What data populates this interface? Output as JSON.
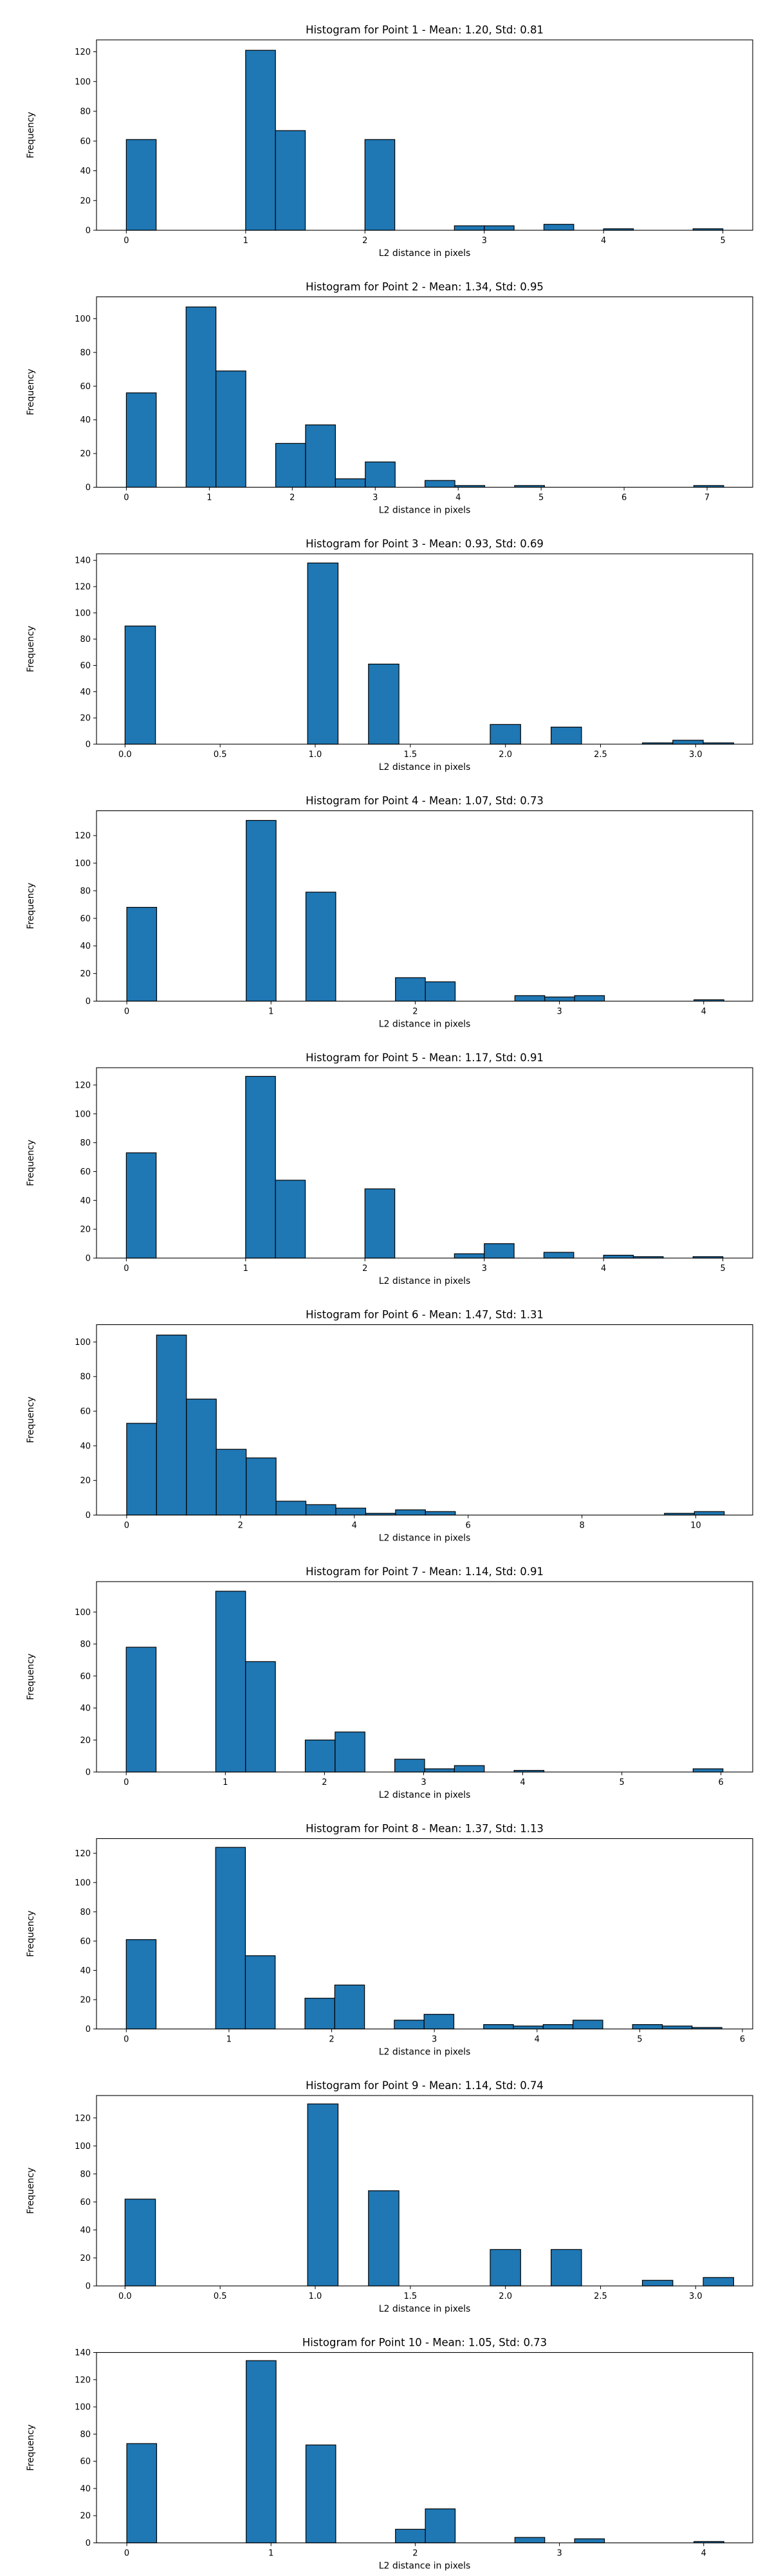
{
  "figure": {
    "bar_color": "#1f77b4",
    "edge_color": "#000000",
    "background": "#ffffff"
  },
  "chart_data": [
    {
      "type": "bar",
      "title": "Histogram for Point 1 - Mean: 1.20, Std: 0.81",
      "xlabel": "L2 distance in pixels",
      "ylabel": "Frequency",
      "xlim": [
        -0.25,
        5.25
      ],
      "ylim": [
        0,
        128
      ],
      "xticks": [
        0,
        1,
        2,
        3,
        4,
        5
      ],
      "xtick_labels": [
        "0",
        "1",
        "2",
        "3",
        "4",
        "5"
      ],
      "yticks": [
        0,
        20,
        40,
        60,
        80,
        100,
        120
      ],
      "bins": [
        {
          "x0": 0.0,
          "x1": 0.25,
          "value": 61
        },
        {
          "x0": 1.0,
          "x1": 1.25,
          "value": 121
        },
        {
          "x0": 1.25,
          "x1": 1.5,
          "value": 67
        },
        {
          "x0": 2.0,
          "x1": 2.25,
          "value": 61
        },
        {
          "x0": 2.75,
          "x1": 3.0,
          "value": 3
        },
        {
          "x0": 3.0,
          "x1": 3.25,
          "value": 3
        },
        {
          "x0": 3.5,
          "x1": 3.75,
          "value": 4
        },
        {
          "x0": 4.0,
          "x1": 4.25,
          "value": 1
        },
        {
          "x0": 4.75,
          "x1": 5.0,
          "value": 1
        }
      ]
    },
    {
      "type": "bar",
      "title": "Histogram for Point 2 - Mean: 1.34, Std: 0.95",
      "xlabel": "L2 distance in pixels",
      "ylabel": "Frequency",
      "xlim": [
        -0.36,
        7.55
      ],
      "ylim": [
        0,
        113
      ],
      "xticks": [
        0,
        1,
        2,
        3,
        4,
        5,
        6,
        7
      ],
      "xtick_labels": [
        "0",
        "1",
        "2",
        "3",
        "4",
        "5",
        "6",
        "7"
      ],
      "yticks": [
        0,
        20,
        40,
        60,
        80,
        100
      ],
      "bins": [
        {
          "x0": 0.0,
          "x1": 0.36,
          "value": 56
        },
        {
          "x0": 0.72,
          "x1": 1.08,
          "value": 107
        },
        {
          "x0": 1.08,
          "x1": 1.44,
          "value": 69
        },
        {
          "x0": 1.8,
          "x1": 2.16,
          "value": 26
        },
        {
          "x0": 2.16,
          "x1": 2.52,
          "value": 37
        },
        {
          "x0": 2.52,
          "x1": 2.88,
          "value": 5
        },
        {
          "x0": 2.88,
          "x1": 3.24,
          "value": 15
        },
        {
          "x0": 3.6,
          "x1": 3.96,
          "value": 4
        },
        {
          "x0": 3.96,
          "x1": 4.32,
          "value": 1
        },
        {
          "x0": 4.68,
          "x1": 5.04,
          "value": 1
        },
        {
          "x0": 6.84,
          "x1": 7.2,
          "value": 1
        }
      ]
    },
    {
      "type": "bar",
      "title": "Histogram for Point 3 - Mean: 0.93, Std: 0.69",
      "xlabel": "L2 distance in pixels",
      "ylabel": "Frequency",
      "xlim": [
        -0.15,
        3.3
      ],
      "ylim": [
        0,
        145
      ],
      "xticks": [
        0,
        0.5,
        1,
        1.5,
        2,
        2.5,
        3
      ],
      "xtick_labels": [
        "0.0",
        "0.5",
        "1.0",
        "1.5",
        "2.0",
        "2.5",
        "3.0"
      ],
      "yticks": [
        0,
        20,
        40,
        60,
        80,
        100,
        120,
        140
      ],
      "bins": [
        {
          "x0": 0.0,
          "x1": 0.16,
          "value": 90
        },
        {
          "x0": 0.96,
          "x1": 1.12,
          "value": 138
        },
        {
          "x0": 1.28,
          "x1": 1.44,
          "value": 61
        },
        {
          "x0": 1.92,
          "x1": 2.08,
          "value": 15
        },
        {
          "x0": 2.24,
          "x1": 2.4,
          "value": 13
        },
        {
          "x0": 2.72,
          "x1": 2.88,
          "value": 1
        },
        {
          "x0": 2.88,
          "x1": 3.04,
          "value": 3
        },
        {
          "x0": 3.04,
          "x1": 3.2,
          "value": 1
        }
      ]
    },
    {
      "type": "bar",
      "title": "Histogram for Point 4 - Mean: 1.07, Std: 0.73",
      "xlabel": "L2 distance in pixels",
      "ylabel": "Frequency",
      "xlim": [
        -0.21,
        4.34
      ],
      "ylim": [
        0,
        138
      ],
      "xticks": [
        0,
        1,
        2,
        3,
        4
      ],
      "xtick_labels": [
        "0",
        "1",
        "2",
        "3",
        "4"
      ],
      "yticks": [
        0,
        20,
        40,
        60,
        80,
        100,
        120
      ],
      "bins": [
        {
          "x0": 0.0,
          "x1": 0.207,
          "value": 68
        },
        {
          "x0": 0.828,
          "x1": 1.035,
          "value": 131
        },
        {
          "x0": 1.242,
          "x1": 1.449,
          "value": 79
        },
        {
          "x0": 1.863,
          "x1": 2.07,
          "value": 17
        },
        {
          "x0": 2.07,
          "x1": 2.277,
          "value": 14
        },
        {
          "x0": 2.691,
          "x1": 2.898,
          "value": 4
        },
        {
          "x0": 2.898,
          "x1": 3.105,
          "value": 3
        },
        {
          "x0": 3.105,
          "x1": 3.312,
          "value": 4
        },
        {
          "x0": 3.933,
          "x1": 4.14,
          "value": 1
        }
      ]
    },
    {
      "type": "bar",
      "title": "Histogram for Point 5 - Mean: 1.17, Std: 0.91",
      "xlabel": "L2 distance in pixels",
      "ylabel": "Frequency",
      "xlim": [
        -0.25,
        5.25
      ],
      "ylim": [
        0,
        132
      ],
      "xticks": [
        0,
        1,
        2,
        3,
        4,
        5
      ],
      "xtick_labels": [
        "0",
        "1",
        "2",
        "3",
        "4",
        "5"
      ],
      "yticks": [
        0,
        20,
        40,
        60,
        80,
        100,
        120
      ],
      "bins": [
        {
          "x0": 0.0,
          "x1": 0.25,
          "value": 73
        },
        {
          "x0": 1.0,
          "x1": 1.25,
          "value": 126
        },
        {
          "x0": 1.25,
          "x1": 1.5,
          "value": 54
        },
        {
          "x0": 2.0,
          "x1": 2.25,
          "value": 48
        },
        {
          "x0": 2.75,
          "x1": 3.0,
          "value": 3
        },
        {
          "x0": 3.0,
          "x1": 3.25,
          "value": 10
        },
        {
          "x0": 3.5,
          "x1": 3.75,
          "value": 4
        },
        {
          "x0": 4.0,
          "x1": 4.25,
          "value": 2
        },
        {
          "x0": 4.25,
          "x1": 4.5,
          "value": 1
        },
        {
          "x0": 4.75,
          "x1": 5.0,
          "value": 1
        }
      ]
    },
    {
      "type": "bar",
      "title": "Histogram for Point 6 - Mean: 1.47, Std: 1.31",
      "xlabel": "L2 distance in pixels",
      "ylabel": "Frequency",
      "xlim": [
        -0.53,
        11.0
      ],
      "ylim": [
        0,
        110
      ],
      "xticks": [
        0,
        2,
        4,
        6,
        8,
        10
      ],
      "xtick_labels": [
        "0",
        "2",
        "4",
        "6",
        "8",
        "10"
      ],
      "yticks": [
        0,
        20,
        40,
        60,
        80,
        100
      ],
      "bins": [
        {
          "x0": 0.0,
          "x1": 0.525,
          "value": 53
        },
        {
          "x0": 0.525,
          "x1": 1.05,
          "value": 104
        },
        {
          "x0": 1.05,
          "x1": 1.575,
          "value": 67
        },
        {
          "x0": 1.575,
          "x1": 2.1,
          "value": 38
        },
        {
          "x0": 2.1,
          "x1": 2.625,
          "value": 33
        },
        {
          "x0": 2.625,
          "x1": 3.15,
          "value": 8
        },
        {
          "x0": 3.15,
          "x1": 3.675,
          "value": 6
        },
        {
          "x0": 3.675,
          "x1": 4.2,
          "value": 4
        },
        {
          "x0": 4.2,
          "x1": 4.725,
          "value": 1
        },
        {
          "x0": 4.725,
          "x1": 5.25,
          "value": 3
        },
        {
          "x0": 5.25,
          "x1": 5.775,
          "value": 2
        },
        {
          "x0": 9.45,
          "x1": 9.975,
          "value": 1
        },
        {
          "x0": 9.975,
          "x1": 10.5,
          "value": 2
        }
      ]
    },
    {
      "type": "bar",
      "title": "Histogram for Point 7 - Mean: 1.14, Std: 0.91",
      "xlabel": "L2 distance in pixels",
      "ylabel": "Frequency",
      "xlim": [
        -0.3,
        6.32
      ],
      "ylim": [
        0,
        119
      ],
      "xticks": [
        0,
        1,
        2,
        3,
        4,
        5,
        6
      ],
      "xtick_labels": [
        "0",
        "1",
        "2",
        "3",
        "4",
        "5",
        "6"
      ],
      "yticks": [
        0,
        20,
        40,
        60,
        80,
        100
      ],
      "bins": [
        {
          "x0": 0.0,
          "x1": 0.301,
          "value": 78
        },
        {
          "x0": 0.903,
          "x1": 1.204,
          "value": 113
        },
        {
          "x0": 1.204,
          "x1": 1.505,
          "value": 69
        },
        {
          "x0": 1.806,
          "x1": 2.107,
          "value": 20
        },
        {
          "x0": 2.107,
          "x1": 2.408,
          "value": 25
        },
        {
          "x0": 2.709,
          "x1": 3.01,
          "value": 8
        },
        {
          "x0": 3.01,
          "x1": 3.311,
          "value": 2
        },
        {
          "x0": 3.311,
          "x1": 3.612,
          "value": 4
        },
        {
          "x0": 3.913,
          "x1": 4.214,
          "value": 1
        },
        {
          "x0": 5.719,
          "x1": 6.02,
          "value": 2
        }
      ]
    },
    {
      "type": "bar",
      "title": "Histogram for Point 8 - Mean: 1.37, Std: 1.13",
      "xlabel": "L2 distance in pixels",
      "ylabel": "Frequency",
      "xlim": [
        -0.29,
        6.1
      ],
      "ylim": [
        0,
        130
      ],
      "xticks": [
        0,
        1,
        2,
        3,
        4,
        5,
        6
      ],
      "xtick_labels": [
        "0",
        "1",
        "2",
        "3",
        "4",
        "5",
        "6"
      ],
      "yticks": [
        0,
        20,
        40,
        60,
        80,
        100,
        120
      ],
      "bins": [
        {
          "x0": 0.0,
          "x1": 0.29,
          "value": 61
        },
        {
          "x0": 0.87,
          "x1": 1.16,
          "value": 124
        },
        {
          "x0": 1.16,
          "x1": 1.45,
          "value": 50
        },
        {
          "x0": 1.74,
          "x1": 2.03,
          "value": 21
        },
        {
          "x0": 2.03,
          "x1": 2.32,
          "value": 30
        },
        {
          "x0": 2.61,
          "x1": 2.9,
          "value": 6
        },
        {
          "x0": 2.9,
          "x1": 3.19,
          "value": 10
        },
        {
          "x0": 3.48,
          "x1": 3.77,
          "value": 3
        },
        {
          "x0": 3.77,
          "x1": 4.06,
          "value": 2
        },
        {
          "x0": 4.06,
          "x1": 4.35,
          "value": 3
        },
        {
          "x0": 4.35,
          "x1": 4.64,
          "value": 6
        },
        {
          "x0": 4.93,
          "x1": 5.22,
          "value": 3
        },
        {
          "x0": 5.22,
          "x1": 5.51,
          "value": 2
        },
        {
          "x0": 5.51,
          "x1": 5.8,
          "value": 1
        }
      ]
    },
    {
      "type": "bar",
      "title": "Histogram for Point 9 - Mean: 1.14, Std: 0.74",
      "xlabel": "L2 distance in pixels",
      "ylabel": "Frequency",
      "xlim": [
        -0.15,
        3.3
      ],
      "ylim": [
        0,
        136
      ],
      "xticks": [
        0,
        0.5,
        1,
        1.5,
        2,
        2.5,
        3
      ],
      "xtick_labels": [
        "0.0",
        "0.5",
        "1.0",
        "1.5",
        "2.0",
        "2.5",
        "3.0"
      ],
      "yticks": [
        0,
        20,
        40,
        60,
        80,
        100,
        120
      ],
      "bins": [
        {
          "x0": 0.0,
          "x1": 0.16,
          "value": 62
        },
        {
          "x0": 0.96,
          "x1": 1.12,
          "value": 130
        },
        {
          "x0": 1.28,
          "x1": 1.44,
          "value": 68
        },
        {
          "x0": 1.92,
          "x1": 2.08,
          "value": 26
        },
        {
          "x0": 2.24,
          "x1": 2.4,
          "value": 26
        },
        {
          "x0": 2.72,
          "x1": 2.88,
          "value": 4
        },
        {
          "x0": 3.04,
          "x1": 3.2,
          "value": 6
        }
      ]
    },
    {
      "type": "bar",
      "title": "Histogram for Point 10 - Mean: 1.05, Std: 0.73",
      "xlabel": "L2 distance in pixels",
      "ylabel": "Frequency",
      "xlim": [
        -0.21,
        4.34
      ],
      "ylim": [
        0,
        140
      ],
      "xticks": [
        0,
        1,
        2,
        3,
        4
      ],
      "xtick_labels": [
        "0",
        "1",
        "2",
        "3",
        "4"
      ],
      "yticks": [
        0,
        20,
        40,
        60,
        80,
        100,
        120,
        140
      ],
      "bins": [
        {
          "x0": 0.0,
          "x1": 0.207,
          "value": 73
        },
        {
          "x0": 0.828,
          "x1": 1.035,
          "value": 134
        },
        {
          "x0": 1.242,
          "x1": 1.449,
          "value": 72
        },
        {
          "x0": 1.863,
          "x1": 2.07,
          "value": 10
        },
        {
          "x0": 2.07,
          "x1": 2.277,
          "value": 25
        },
        {
          "x0": 2.691,
          "x1": 2.898,
          "value": 4
        },
        {
          "x0": 3.105,
          "x1": 3.312,
          "value": 3
        },
        {
          "x0": 3.933,
          "x1": 4.14,
          "value": 1
        }
      ]
    }
  ]
}
